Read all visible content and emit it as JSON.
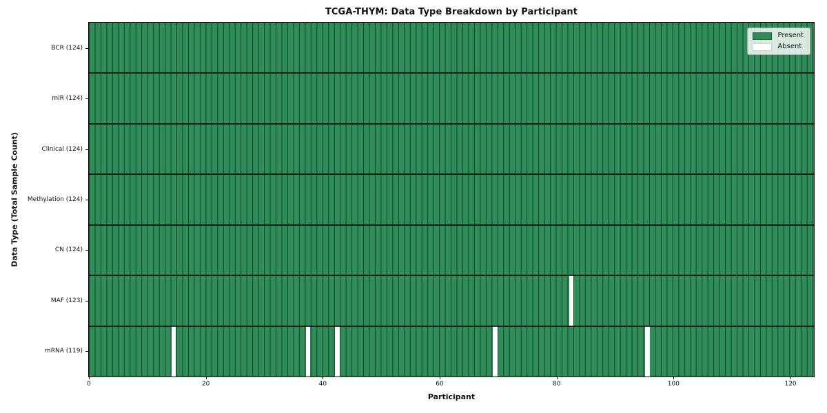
{
  "chart_data": {
    "type": "heatmap",
    "title": "TCGA-THYM: Data Type Breakdown by Participant",
    "xlabel": "Participant",
    "ylabel": "Data Type (Total Sample Count)",
    "n_participants": 124,
    "x_ticks": [
      0,
      20,
      40,
      60,
      80,
      100,
      120
    ],
    "x_range": [
      0,
      124
    ],
    "grid": "cell-borders",
    "legend_position": "upper right",
    "legend": [
      {
        "label": "Present",
        "color": "#2e8b57"
      },
      {
        "label": "Absent",
        "color": "#ffffff"
      }
    ],
    "rows": [
      {
        "label": "BCR (124)",
        "name": "BCR",
        "total": 124,
        "absent_participants": []
      },
      {
        "label": "miR (124)",
        "name": "miR",
        "total": 124,
        "absent_participants": []
      },
      {
        "label": "Clinical (124)",
        "name": "Clinical",
        "total": 124,
        "absent_participants": []
      },
      {
        "label": "Methylation (124)",
        "name": "Methylation",
        "total": 124,
        "absent_participants": []
      },
      {
        "label": "CN (124)",
        "name": "CN",
        "total": 124,
        "absent_participants": []
      },
      {
        "label": "MAF (123)",
        "name": "MAF",
        "total": 123,
        "absent_participants": [
          82
        ]
      },
      {
        "label": "mRNA (119)",
        "name": "mRNA",
        "total": 119,
        "absent_participants": [
          14,
          37,
          42,
          69,
          95
        ]
      }
    ]
  }
}
